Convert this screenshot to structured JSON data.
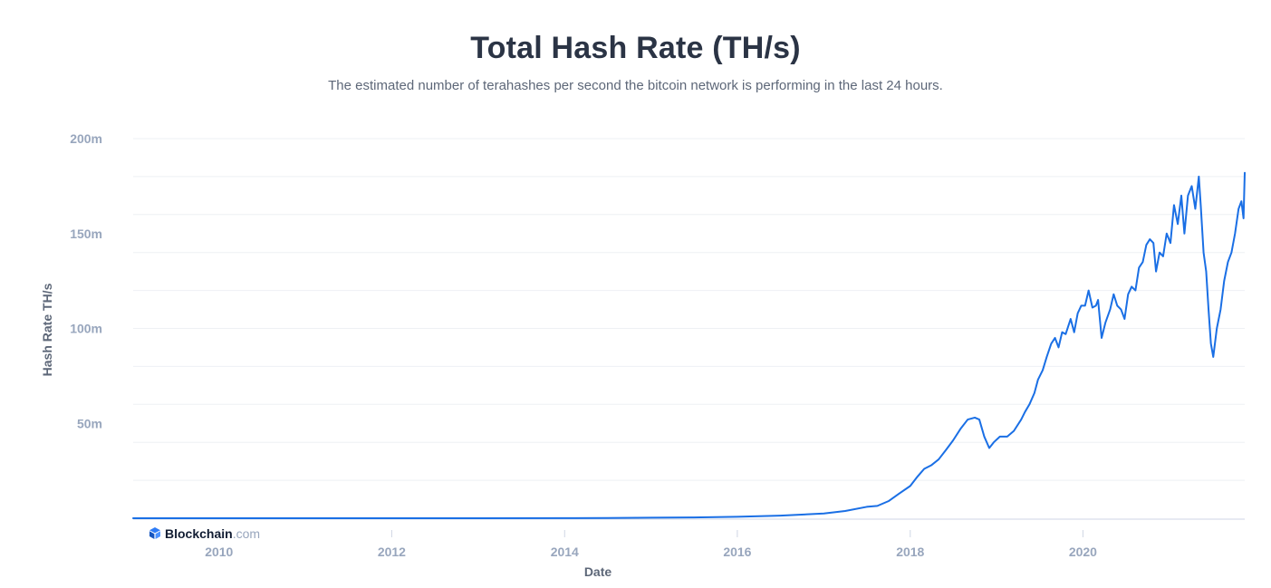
{
  "chart_data": {
    "type": "line",
    "title": "Total Hash Rate (TH/s)",
    "subtitle": "The estimated number of terahashes per second the bitcoin network is performing in the last 24 hours.",
    "xlabel": "Date",
    "ylabel": "Hash Rate TH/s",
    "xlim": [
      "2009-01-03",
      "2021-11-15"
    ],
    "ylim": [
      0,
      200000000
    ],
    "x_ticks": [
      "2010",
      "2012",
      "2014",
      "2016",
      "2018",
      "2020"
    ],
    "y_ticks": [
      {
        "value": 50000000,
        "label": "50m"
      },
      {
        "value": 100000000,
        "label": "100m"
      },
      {
        "value": 150000000,
        "label": "150m"
      },
      {
        "value": 200000000,
        "label": "200m"
      }
    ],
    "grid": true,
    "colors": {
      "line": "#1a6fe5",
      "grid": "#eef0f4",
      "axis": "#cfd6e4"
    },
    "series": [
      {
        "x": [
          "2009-01-03",
          "2010-01-01",
          "2011-01-01",
          "2012-01-01",
          "2013-01-01",
          "2014-01-01",
          "2014-07-01",
          "2015-01-01",
          "2015-07-01",
          "2016-01-01",
          "2016-07-01",
          "2017-01-01",
          "2017-04-01",
          "2017-07-01",
          "2017-08-15",
          "2017-10-01",
          "2017-11-15",
          "2018-01-01",
          "2018-02-01",
          "2018-03-01",
          "2018-04-01",
          "2018-05-01",
          "2018-06-01",
          "2018-07-01",
          "2018-08-01",
          "2018-09-01",
          "2018-10-01",
          "2018-10-20",
          "2018-11-10",
          "2018-12-01",
          "2018-12-20",
          "2019-01-15",
          "2019-02-15",
          "2019-03-15",
          "2019-04-15",
          "2019-05-01",
          "2019-05-20",
          "2019-06-10",
          "2019-06-25",
          "2019-07-15",
          "2019-08-01",
          "2019-08-20",
          "2019-09-05",
          "2019-09-20",
          "2019-10-05",
          "2019-10-20",
          "2019-11-10",
          "2019-11-25",
          "2019-12-10",
          "2019-12-25",
          "2020-01-10",
          "2020-01-25",
          "2020-02-10",
          "2020-02-25",
          "2020-03-05",
          "2020-03-20",
          "2020-04-05",
          "2020-04-25",
          "2020-05-10",
          "2020-05-25",
          "2020-06-10",
          "2020-06-25",
          "2020-07-10",
          "2020-07-25",
          "2020-08-10",
          "2020-08-25",
          "2020-09-10",
          "2020-09-25",
          "2020-10-10",
          "2020-10-25",
          "2020-11-05",
          "2020-11-20",
          "2020-12-05",
          "2020-12-20",
          "2021-01-05",
          "2021-01-20",
          "2021-02-05",
          "2021-02-20",
          "2021-03-05",
          "2021-03-20",
          "2021-04-05",
          "2021-04-20",
          "2021-05-05",
          "2021-05-13",
          "2021-05-25",
          "2021-06-05",
          "2021-06-15",
          "2021-06-25",
          "2021-07-05",
          "2021-07-20",
          "2021-08-05",
          "2021-08-20",
          "2021-09-05",
          "2021-09-20",
          "2021-10-05",
          "2021-10-20",
          "2021-11-01",
          "2021-11-10",
          "2021-11-15"
        ],
        "values": [
          0,
          0,
          10,
          20,
          30,
          60000,
          120000,
          300000,
          400000,
          800000,
          1400000,
          2500000,
          3800000,
          6000000,
          6500000,
          9000000,
          13000000,
          17000000,
          22000000,
          26000000,
          28000000,
          31000000,
          36000000,
          41000000,
          47000000,
          52000000,
          53000000,
          52000000,
          43000000,
          37000000,
          40000000,
          43000000,
          43000000,
          46000000,
          52000000,
          56000000,
          60000000,
          66000000,
          73000000,
          78000000,
          85000000,
          92000000,
          95000000,
          90000000,
          98000000,
          97000000,
          105000000,
          98000000,
          108000000,
          112000000,
          112000000,
          120000000,
          111000000,
          112000000,
          115000000,
          95000000,
          103000000,
          110000000,
          118000000,
          112000000,
          110000000,
          105000000,
          118000000,
          122000000,
          120000000,
          132000000,
          135000000,
          144000000,
          147000000,
          145000000,
          130000000,
          140000000,
          138000000,
          150000000,
          145000000,
          165000000,
          155000000,
          170000000,
          150000000,
          170000000,
          175000000,
          163000000,
          180000000,
          165000000,
          140000000,
          130000000,
          110000000,
          92000000,
          85000000,
          100000000,
          110000000,
          125000000,
          135000000,
          140000000,
          150000000,
          163000000,
          167000000,
          158000000,
          182000000
        ]
      }
    ],
    "brand": {
      "name": "Blockchain",
      "tld": ".com",
      "icon": "blockchain-logo-icon"
    }
  }
}
